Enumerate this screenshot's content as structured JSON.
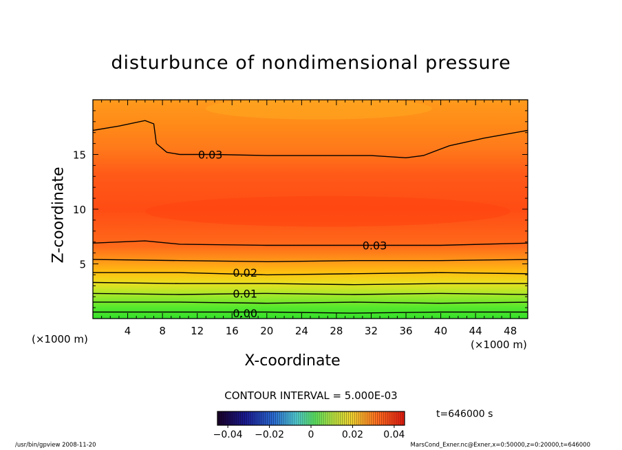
{
  "title": "disturbunce of nondimensional pressure",
  "chart_data": {
    "type": "contour",
    "title": "disturbunce of nondimensional pressure",
    "xlabel": "X-coordinate",
    "ylabel": "Z-coordinate",
    "x_unit": "(×1000 m)",
    "y_unit": "(×1000 m)",
    "xlim": [
      0,
      50
    ],
    "ylim": [
      0,
      20
    ],
    "x_ticks": [
      4,
      8,
      12,
      16,
      20,
      24,
      28,
      32,
      36,
      40,
      44,
      48
    ],
    "y_ticks": [
      5,
      10,
      15
    ],
    "contour_interval": "5.000E-03",
    "contour_labels": [
      {
        "text": "0.03",
        "x": 13.5,
        "y": 15
      },
      {
        "text": "0.03",
        "x": 32.4,
        "y": 6.7
      },
      {
        "text": "0.02",
        "x": 17.5,
        "y": 4.2
      },
      {
        "text": "0.01",
        "x": 17.5,
        "y": 2.3
      },
      {
        "text": "0.00",
        "x": 17.5,
        "y": 0.5
      }
    ],
    "contour_lines": [
      {
        "level": 0.03,
        "points": [
          [
            0,
            17.2
          ],
          [
            3,
            17.6
          ],
          [
            6,
            18.1
          ],
          [
            7,
            17.8
          ],
          [
            7.3,
            16
          ],
          [
            8.5,
            15.2
          ],
          [
            10,
            15
          ],
          [
            14,
            15
          ],
          [
            20,
            14.9
          ],
          [
            26,
            14.9
          ],
          [
            32,
            14.9
          ],
          [
            36,
            14.7
          ],
          [
            38,
            14.9
          ],
          [
            41,
            15.8
          ],
          [
            45,
            16.5
          ],
          [
            50,
            17.2
          ]
        ]
      },
      {
        "level": 0.03,
        "points": [
          [
            0,
            6.9
          ],
          [
            6,
            7.1
          ],
          [
            10,
            6.8
          ],
          [
            20,
            6.7
          ],
          [
            30,
            6.7
          ],
          [
            40,
            6.7
          ],
          [
            50,
            6.9
          ]
        ]
      },
      {
        "level": 0.025,
        "points": [
          [
            0,
            5.4
          ],
          [
            10,
            5.3
          ],
          [
            20,
            5.2
          ],
          [
            30,
            5.3
          ],
          [
            40,
            5.3
          ],
          [
            50,
            5.4
          ]
        ]
      },
      {
        "level": 0.02,
        "points": [
          [
            0,
            4.2
          ],
          [
            10,
            4.2
          ],
          [
            20,
            4.0
          ],
          [
            30,
            4.1
          ],
          [
            40,
            4.2
          ],
          [
            50,
            4.1
          ]
        ]
      },
      {
        "level": 0.015,
        "points": [
          [
            0,
            3.3
          ],
          [
            10,
            3.2
          ],
          [
            20,
            3.2
          ],
          [
            30,
            3.1
          ],
          [
            40,
            3.2
          ],
          [
            50,
            3.2
          ]
        ]
      },
      {
        "level": 0.01,
        "points": [
          [
            0,
            2.3
          ],
          [
            10,
            2.2
          ],
          [
            20,
            2.3
          ],
          [
            30,
            2.2
          ],
          [
            40,
            2.3
          ],
          [
            50,
            2.2
          ]
        ]
      },
      {
        "level": 0.005,
        "points": [
          [
            0,
            1.5
          ],
          [
            10,
            1.5
          ],
          [
            20,
            1.4
          ],
          [
            30,
            1.5
          ],
          [
            40,
            1.4
          ],
          [
            50,
            1.5
          ]
        ]
      },
      {
        "level": 0.0,
        "points": [
          [
            0,
            0.6
          ],
          [
            10,
            0.6
          ],
          [
            20,
            0.6
          ],
          [
            30,
            0.5
          ],
          [
            40,
            0.6
          ],
          [
            50,
            0.6
          ]
        ]
      }
    ],
    "colorbar": {
      "tick_labels": [
        "−0.04",
        "−0.02",
        "0",
        "0.02",
        "0.04"
      ],
      "tick_values": [
        -0.04,
        -0.02,
        0,
        0.02,
        0.04
      ],
      "range": [
        -0.045,
        0.045
      ]
    },
    "colors": {
      "bottom_green": "#39e22c",
      "mid_yellow": "#f5d800",
      "orange": "#ff8c1a",
      "core_red": "#ff4d14",
      "top_orange": "#ff9a18"
    }
  },
  "contour_interval_text": "CONTOUR INTERVAL = 5.000E-03",
  "time_text": "t=646000  s",
  "x_unit_left": "(×1000 m)",
  "x_unit_right": "(×1000 m)",
  "footer_left": "/usr/bin/gpview   2008-11-20",
  "footer_right": "MarsCond_Exner.nc@Exner,x=0:50000,z=0:20000,t=646000"
}
